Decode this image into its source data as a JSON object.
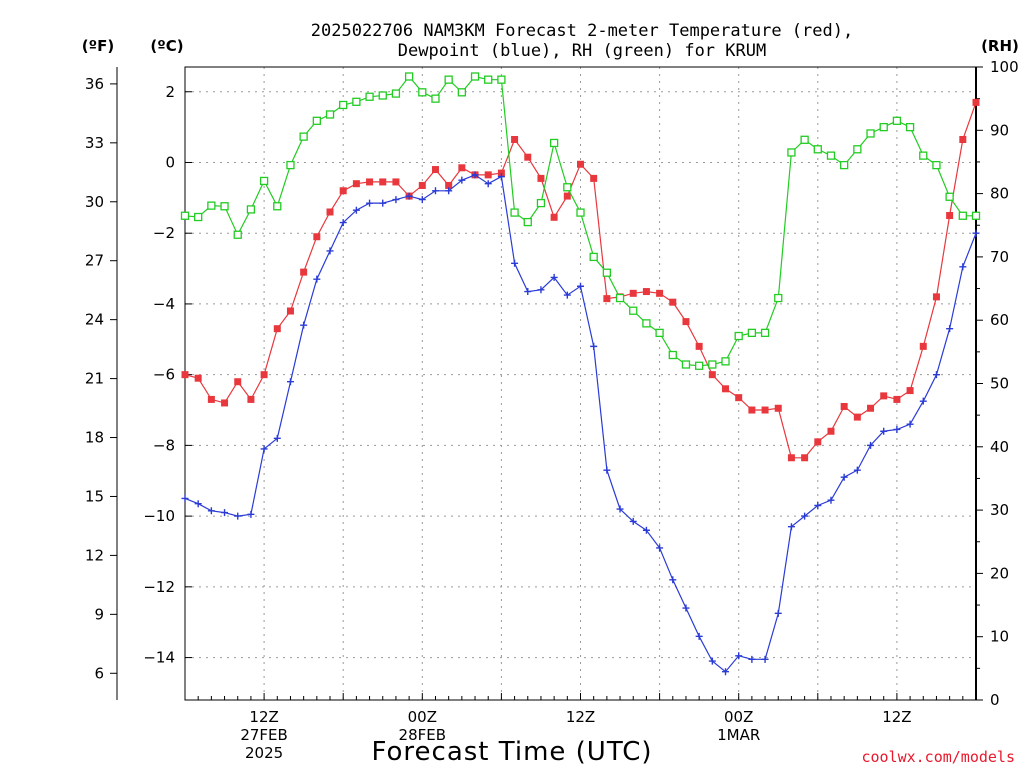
{
  "title_line1": "2025022706 NAM3KM Forecast 2-meter Temperature (red),",
  "title_line2": "Dewpoint (blue), RH (green) for KRUM",
  "units": {
    "f": "(ºF)",
    "c": "(ºC)",
    "rh": "(RH)"
  },
  "xlabel": "Forecast Time (UTC)",
  "credit": "coolwx.com/models",
  "x_ticks": [
    {
      "hour": 6,
      "lines": [
        "12Z",
        "27FEB",
        "2025"
      ]
    },
    {
      "hour": 18,
      "lines": [
        "00Z",
        "28FEB"
      ]
    },
    {
      "hour": 30,
      "lines": [
        "12Z"
      ]
    },
    {
      "hour": 42,
      "lines": [
        "00Z",
        "1MAR"
      ]
    },
    {
      "hour": 54,
      "lines": [
        "12Z"
      ]
    }
  ],
  "c_ticks": [
    "2",
    "0",
    "−2",
    "−4",
    "−6",
    "−8",
    "−10",
    "−12",
    "−14"
  ],
  "f_ticks": [
    "36",
    "33",
    "30",
    "27",
    "24",
    "21",
    "18",
    "15",
    "12",
    "9",
    "6"
  ],
  "rh_ticks": [
    "100",
    "90",
    "80",
    "70",
    "60",
    "50",
    "40",
    "30",
    "20",
    "10",
    "0"
  ],
  "colors": {
    "temp": "#e8383d",
    "dewpoint": "#2a3bd6",
    "rh": "#22cc22"
  },
  "chart_data": {
    "type": "line",
    "x_unit": "forecast hour from 2025-02-27 06Z",
    "xlim": [
      0,
      60
    ],
    "ylim_c": [
      -15.2,
      2.7
    ],
    "ylim_rh": [
      0,
      100
    ],
    "series": [
      {
        "name": "Temperature",
        "axis": "celsius",
        "marker": "filled-square",
        "values": [
          -6.0,
          -6.1,
          -6.7,
          -6.8,
          -6.2,
          -6.7,
          -6.0,
          -4.7,
          -4.2,
          -3.1,
          -2.1,
          -1.4,
          -0.8,
          -0.6,
          -0.55,
          -0.55,
          -0.55,
          -0.95,
          -0.65,
          -0.2,
          -0.65,
          -0.15,
          -0.35,
          -0.35,
          -0.3,
          0.65,
          0.15,
          -0.45,
          -1.55,
          -0.95,
          -0.05,
          -0.45,
          -3.85,
          -3.8,
          -3.7,
          -3.65,
          -3.7,
          -3.95,
          -4.5,
          -5.2,
          -6.0,
          -6.4,
          -6.65,
          -7.0,
          -7.0,
          -6.95,
          -8.35,
          -8.35,
          -7.9,
          -7.6,
          -6.9,
          -7.2,
          -6.95,
          -6.6,
          -6.7,
          -6.45,
          -5.2,
          -3.8,
          -1.5,
          0.65,
          1.7
        ]
      },
      {
        "name": "Dewpoint",
        "axis": "celsius",
        "marker": "plus",
        "values": [
          -9.5,
          -9.65,
          -9.85,
          -9.9,
          -10.0,
          -9.95,
          -8.1,
          -7.8,
          -6.2,
          -4.6,
          -3.3,
          -2.5,
          -1.7,
          -1.35,
          -1.15,
          -1.15,
          -1.05,
          -0.95,
          -1.05,
          -0.8,
          -0.8,
          -0.5,
          -0.35,
          -0.6,
          -0.4,
          -2.85,
          -3.65,
          -3.6,
          -3.25,
          -3.75,
          -3.5,
          -5.2,
          -8.7,
          -9.8,
          -10.15,
          -10.4,
          -10.9,
          -11.8,
          -12.6,
          -13.4,
          -14.1,
          -14.4,
          -13.95,
          -14.05,
          -14.05,
          -12.75,
          -10.3,
          -10.0,
          -9.7,
          -9.55,
          -8.9,
          -8.7,
          -8.0,
          -7.6,
          -7.55,
          -7.4,
          -6.75,
          -6.0,
          -4.7,
          -2.95,
          -2.0
        ]
      },
      {
        "name": "RH",
        "axis": "rh",
        "marker": "open-square",
        "values": [
          76.5,
          76.3,
          78.1,
          78.0,
          73.5,
          77.5,
          82.0,
          78.0,
          84.5,
          89.0,
          91.5,
          92.5,
          94.0,
          94.5,
          95.3,
          95.5,
          95.8,
          98.5,
          96.0,
          95.0,
          98.0,
          96.0,
          98.5,
          98.0,
          98.0,
          77.0,
          75.5,
          78.5,
          88.0,
          81.0,
          77.0,
          70.0,
          67.5,
          63.5,
          61.5,
          59.5,
          58.0,
          54.5,
          53.0,
          52.8,
          53.0,
          53.5,
          57.5,
          58.0,
          58.0,
          63.5,
          86.5,
          88.5,
          87.0,
          86.0,
          84.5,
          87.0,
          89.5,
          90.5,
          91.5,
          90.5,
          86.0,
          84.5,
          79.5,
          76.5,
          76.5
        ]
      }
    ]
  }
}
